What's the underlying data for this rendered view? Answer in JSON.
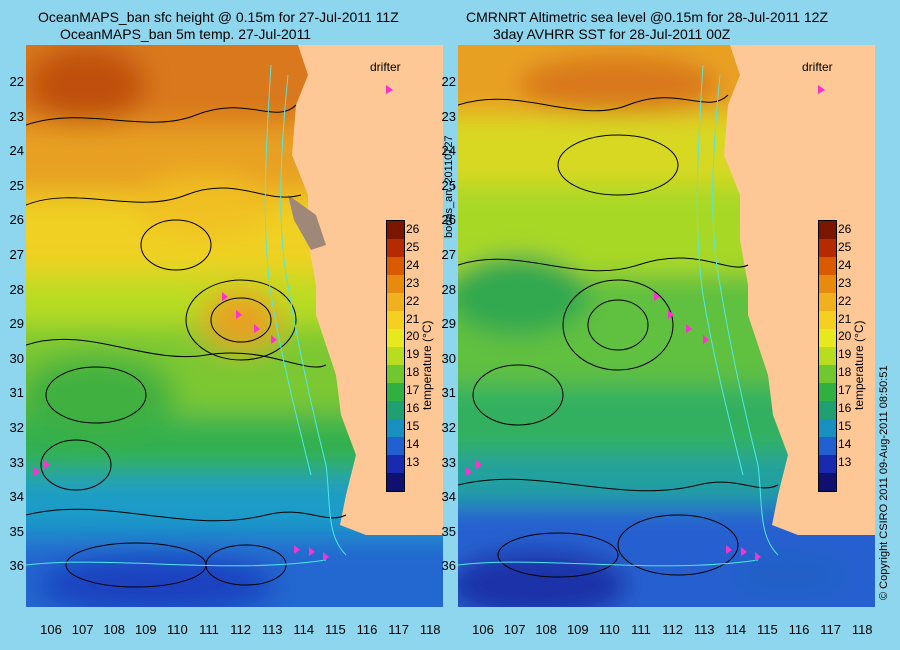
{
  "left_panel": {
    "title_line1": "OceanMAPS_ban sfc height @ 0.15m for 27-Jul-2011 11Z",
    "title_line2": "OceanMAPS_ban 5m temp. 27-Jul-2011",
    "drifter_label": "drifter"
  },
  "right_panel": {
    "title_line1": "CMRNRT Altimetric sea level  @0.15m  for 28-Jul-2011 12Z",
    "title_line2": "3day AVHRR SST for 28-Jul-2011 00Z",
    "drifter_label": "drifter"
  },
  "side_label": "bodas_an_20110727",
  "copyright": "© Copyright CSIRO 2011  09-Aug-2011 08:50:51",
  "latitude_labels": [
    "22",
    "23",
    "24",
    "25",
    "26",
    "27",
    "28",
    "29",
    "30",
    "31",
    "32",
    "33",
    "34",
    "35",
    "36"
  ],
  "longitude_labels": [
    "106",
    "107",
    "108",
    "109",
    "110",
    "111",
    "112",
    "113",
    "114",
    "115",
    "116",
    "117",
    "118"
  ],
  "colorbar": {
    "unit_label": "temperature (°C)",
    "ticks": [
      "26",
      "25",
      "24",
      "23",
      "22",
      "21",
      "20",
      "19",
      "18",
      "17",
      "16",
      "15",
      "14",
      "13"
    ],
    "colors": [
      "#7a1500",
      "#b52a00",
      "#d95a00",
      "#e98a10",
      "#f0b020",
      "#f5d020",
      "#e8e820",
      "#b8dd20",
      "#70c830",
      "#30b040",
      "#20a070",
      "#1890c0",
      "#2060d0",
      "#1a2ab0",
      "#101070"
    ]
  },
  "land_color": "#fdc896",
  "map_background": "#8dd6ee"
}
